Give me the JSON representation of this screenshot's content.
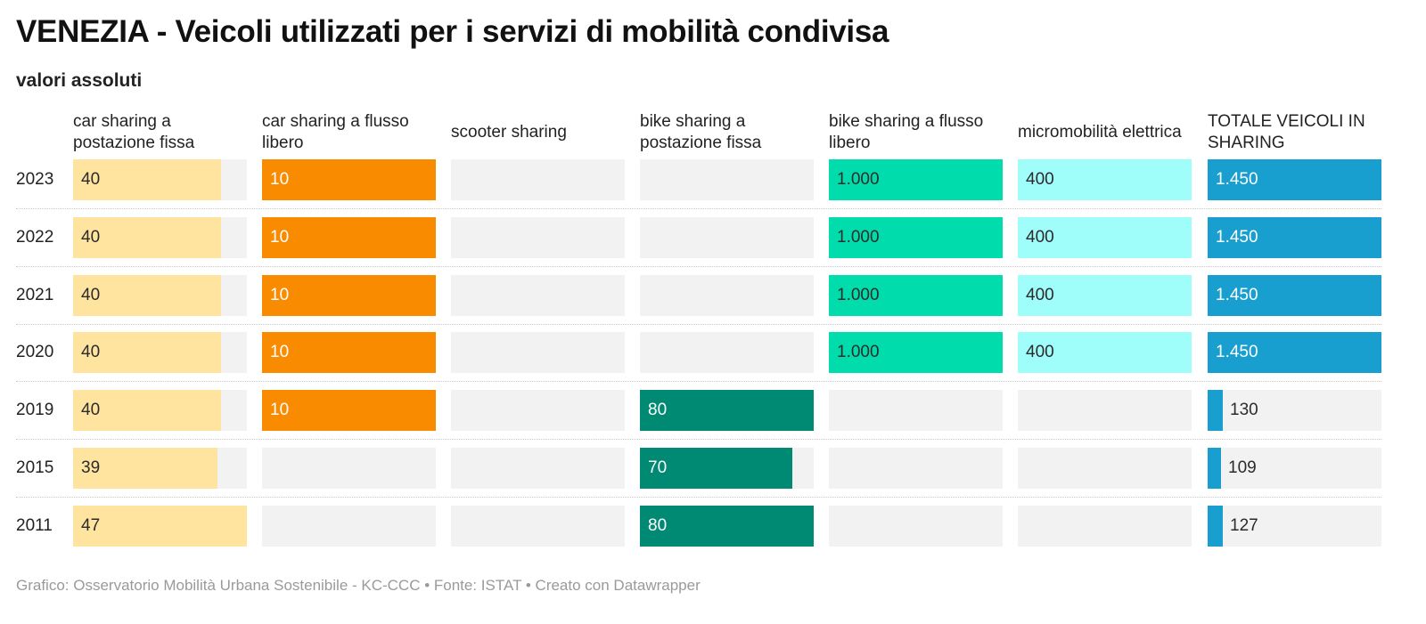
{
  "chart_data": {
    "type": "table",
    "title": "VENEZIA - Veicoli utilizzati per i servizi di mobilità condivisa",
    "subtitle": "valori assoluti",
    "footer": "Grafico: Osservatorio Mobilità Urbana Sostenibile - KC-CCC • Fonte: ISTAT • Creato con Datawrapper",
    "years": [
      "2023",
      "2022",
      "2021",
      "2020",
      "2019",
      "2015",
      "2011"
    ],
    "columns": [
      {
        "label": "car sharing a postazione fissa",
        "color": "#fee49f",
        "text_color": "#2b2b2b",
        "max": 47,
        "values": [
          40,
          40,
          40,
          40,
          40,
          39,
          47
        ],
        "labels": [
          "40",
          "40",
          "40",
          "40",
          "40",
          "39",
          "47"
        ]
      },
      {
        "label": "car sharing a flusso libero",
        "color": "#f98b00",
        "text_color": "#ffffff",
        "max": 10,
        "values": [
          10,
          10,
          10,
          10,
          10,
          null,
          null
        ],
        "labels": [
          "10",
          "10",
          "10",
          "10",
          "10",
          "",
          ""
        ]
      },
      {
        "label": "scooter sharing",
        "color": "#cccccc",
        "text_color": "#2b2b2b",
        "max": 1,
        "values": [
          null,
          null,
          null,
          null,
          null,
          null,
          null
        ],
        "labels": [
          "",
          "",
          "",
          "",
          "",
          "",
          ""
        ]
      },
      {
        "label": "bike sharing a postazione fissa",
        "color": "#008a73",
        "text_color": "#ffffff",
        "max": 80,
        "values": [
          null,
          null,
          null,
          null,
          80,
          70,
          80
        ],
        "labels": [
          "",
          "",
          "",
          "",
          "80",
          "70",
          "80"
        ]
      },
      {
        "label": "bike sharing a flusso libero",
        "color": "#00dcab",
        "text_color": "#2b2b2b",
        "max": 1000,
        "values": [
          1000,
          1000,
          1000,
          1000,
          null,
          null,
          null
        ],
        "labels": [
          "1.000",
          "1.000",
          "1.000",
          "1.000",
          "",
          "",
          ""
        ]
      },
      {
        "label": "micromobilità elettrica",
        "color": "#9ffdfa",
        "text_color": "#2b2b2b",
        "max": 400,
        "values": [
          400,
          400,
          400,
          400,
          null,
          null,
          null
        ],
        "labels": [
          "400",
          "400",
          "400",
          "400",
          "",
          "",
          ""
        ]
      },
      {
        "label": "TOTALE VEICOLI IN SHARING",
        "color": "#199fcf",
        "text_color": "#ffffff",
        "max": 1450,
        "values": [
          1450,
          1450,
          1450,
          1450,
          130,
          109,
          127
        ],
        "labels": [
          "1.450",
          "1.450",
          "1.450",
          "1.450",
          "130",
          "109",
          "127"
        ]
      }
    ]
  }
}
